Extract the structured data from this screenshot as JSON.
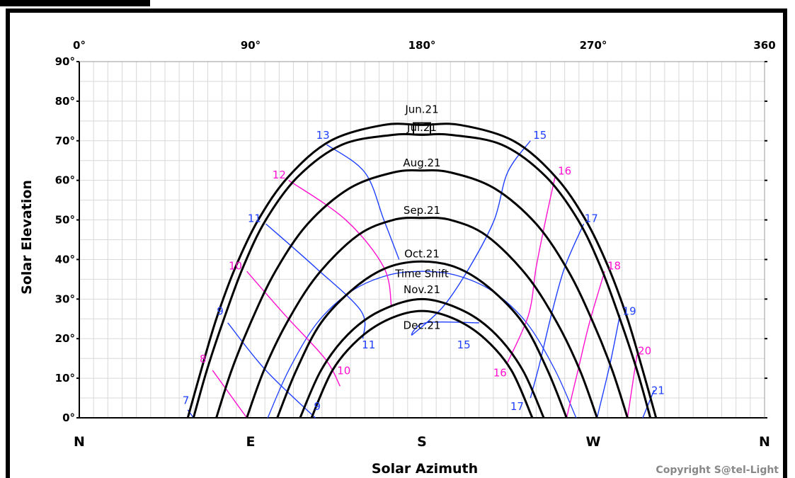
{
  "chart_data": {
    "type": "line",
    "xlabel": "Solar Azimuth",
    "ylabel": "Solar Elevation",
    "xlim": [
      0,
      360
    ],
    "ylim": [
      0,
      90
    ],
    "grid": true,
    "top_ticks": [
      "0°",
      "90°",
      "180°",
      "270°",
      "360"
    ],
    "top_tick_values": [
      0,
      90,
      180,
      270,
      360
    ],
    "y_ticks": [
      "0°",
      "10°",
      "20°",
      "30°",
      "40°",
      "50°",
      "60°",
      "70°",
      "80°",
      "90°"
    ],
    "y_tick_values": [
      0,
      10,
      20,
      30,
      40,
      50,
      60,
      70,
      80,
      90
    ],
    "cardinal_labels": [
      "N",
      "E",
      "S",
      "W",
      "N"
    ],
    "cardinal_values": [
      0,
      90,
      180,
      270,
      360
    ],
    "copyright": "Copyright S@tel-Light",
    "colors": {
      "date_line": "#000000",
      "hour_blue": "#1f3fff",
      "hour_magenta": "#ff10d0",
      "grid": "#d8d8d8"
    },
    "date_series": [
      {
        "name": "Jun.21",
        "points": [
          [
            57,
            0
          ],
          [
            64,
            12
          ],
          [
            72,
            25
          ],
          [
            82,
            38
          ],
          [
            94,
            50
          ],
          [
            110,
            61
          ],
          [
            132,
            70
          ],
          [
            160,
            74
          ],
          [
            180,
            74
          ],
          [
            200,
            74
          ],
          [
            228,
            70
          ],
          [
            250,
            61
          ],
          [
            266,
            50
          ],
          [
            278,
            38
          ],
          [
            288,
            25
          ],
          [
            296,
            12
          ],
          [
            303,
            0
          ]
        ]
      },
      {
        "name": "Jul.21",
        "points": [
          [
            60,
            0
          ],
          [
            67,
            12
          ],
          [
            76,
            25
          ],
          [
            86,
            38
          ],
          [
            98,
            50
          ],
          [
            115,
            61
          ],
          [
            138,
            69
          ],
          [
            165,
            71.5
          ],
          [
            180,
            71.5
          ],
          [
            195,
            71.5
          ],
          [
            222,
            69
          ],
          [
            245,
            61
          ],
          [
            262,
            50
          ],
          [
            274,
            38
          ],
          [
            284,
            25
          ],
          [
            293,
            12
          ],
          [
            300,
            0
          ]
        ]
      },
      {
        "name": "Aug.21",
        "points": [
          [
            72,
            0
          ],
          [
            80,
            12
          ],
          [
            90,
            24
          ],
          [
            103,
            37
          ],
          [
            120,
            49
          ],
          [
            142,
            58
          ],
          [
            165,
            62
          ],
          [
            180,
            62.5
          ],
          [
            195,
            62
          ],
          [
            218,
            58
          ],
          [
            240,
            49
          ],
          [
            257,
            37
          ],
          [
            270,
            24
          ],
          [
            280,
            12
          ],
          [
            288,
            0
          ]
        ]
      },
      {
        "name": "Sep.21",
        "points": [
          [
            88,
            0
          ],
          [
            97,
            12
          ],
          [
            109,
            24
          ],
          [
            125,
            36
          ],
          [
            146,
            46
          ],
          [
            165,
            50
          ],
          [
            180,
            50.5
          ],
          [
            195,
            50
          ],
          [
            214,
            46
          ],
          [
            235,
            36
          ],
          [
            251,
            24
          ],
          [
            263,
            12
          ],
          [
            272,
            0
          ]
        ]
      },
      {
        "name": "Oct.21",
        "points": [
          [
            104,
            0
          ],
          [
            114,
            12
          ],
          [
            127,
            24
          ],
          [
            145,
            33
          ],
          [
            162,
            38
          ],
          [
            180,
            39.5
          ],
          [
            198,
            38
          ],
          [
            215,
            33
          ],
          [
            233,
            24
          ],
          [
            246,
            12
          ],
          [
            256,
            0
          ]
        ]
      },
      {
        "name": "Nov.21",
        "points": [
          [
            116,
            0
          ],
          [
            127,
            12
          ],
          [
            141,
            21
          ],
          [
            158,
            27
          ],
          [
            180,
            30
          ],
          [
            202,
            27
          ],
          [
            219,
            21
          ],
          [
            233,
            12
          ],
          [
            244,
            0
          ]
        ]
      },
      {
        "name": "Dec.21",
        "points": [
          [
            122,
            0
          ],
          [
            133,
            12
          ],
          [
            147,
            20
          ],
          [
            163,
            25
          ],
          [
            180,
            27
          ],
          [
            197,
            25
          ],
          [
            213,
            20
          ],
          [
            227,
            12
          ],
          [
            238,
            0
          ]
        ]
      }
    ],
    "series_labels": [
      {
        "text": "Jun.21",
        "x": 180,
        "y": 77
      },
      {
        "text": "Jul.21",
        "x": 180,
        "y": 72.5
      },
      {
        "text": "Aug.21",
        "x": 180,
        "y": 63.5
      },
      {
        "text": "Sep.21",
        "x": 180,
        "y": 51.5
      },
      {
        "text": "Oct.21",
        "x": 180,
        "y": 40.5
      },
      {
        "text": "Time Shift",
        "x": 180,
        "y": 35.5
      },
      {
        "text": "Nov.21",
        "x": 180,
        "y": 31.5
      },
      {
        "text": "Dec.21",
        "x": 180,
        "y": 22.5
      }
    ],
    "time_shift": {
      "color": "#1f3fff",
      "points": [
        [
          99,
          0
        ],
        [
          110,
          12
        ],
        [
          125,
          24
        ],
        [
          143,
          32
        ],
        [
          162,
          36
        ],
        [
          180,
          37
        ],
        [
          198,
          36
        ],
        [
          217,
          32
        ],
        [
          235,
          24
        ],
        [
          250,
          12
        ],
        [
          261,
          0
        ]
      ]
    },
    "hour_lines": [
      {
        "hour": "7",
        "color": "#1f3fff",
        "points": [
          [
            60,
            0
          ],
          [
            57,
            2
          ]
        ]
      },
      {
        "hour": "8",
        "color": "#ff10d0",
        "points": [
          [
            70,
            12
          ],
          [
            88,
            0
          ]
        ]
      },
      {
        "hour": "9",
        "color": "#1f3fff",
        "points": [
          [
            78,
            24
          ],
          [
            98,
            12
          ],
          [
            124,
            0
          ]
        ]
      },
      {
        "hour": "10",
        "color": "#ff10d0",
        "points": [
          [
            88,
            37
          ],
          [
            108,
            26
          ],
          [
            129,
            15
          ],
          [
            137,
            8
          ]
        ]
      },
      {
        "hour": "11",
        "color": "#1f3fff",
        "points": [
          [
            98,
            49
          ],
          [
            124,
            38
          ],
          [
            148,
            27
          ],
          [
            149,
            20
          ]
        ]
      },
      {
        "hour": "12",
        "color": "#ff10d0",
        "points": [
          [
            110,
            60
          ],
          [
            140,
            50
          ],
          [
            160,
            38
          ],
          [
            164,
            28
          ]
        ]
      },
      {
        "hour": "13",
        "color": "#1f3fff",
        "points": [
          [
            130,
            69
          ],
          [
            150,
            62
          ],
          [
            160,
            50
          ],
          [
            168,
            40
          ]
        ]
      },
      {
        "hour": "15",
        "color": "#1f3fff",
        "points": [
          [
            237,
            70
          ],
          [
            225,
            62
          ],
          [
            218,
            50
          ],
          [
            205,
            38
          ],
          [
            191,
            28
          ],
          [
            175,
            21
          ],
          [
            182,
            24
          ],
          [
            210,
            24
          ]
        ]
      },
      {
        "hour": "16",
        "color": "#ff10d0",
        "points": [
          [
            250,
            61
          ],
          [
            245,
            50
          ],
          [
            240,
            38
          ],
          [
            236,
            26
          ],
          [
            225,
            14
          ]
        ]
      },
      {
        "hour": "17",
        "color": "#1f3fff",
        "points": [
          [
            265,
            49
          ],
          [
            255,
            38
          ],
          [
            248,
            26
          ],
          [
            242,
            14
          ],
          [
            237,
            5
          ]
        ]
      },
      {
        "hour": "18",
        "color": "#ff10d0",
        "points": [
          [
            276,
            37
          ],
          [
            268,
            24
          ],
          [
            262,
            12
          ],
          [
            256,
            0
          ]
        ]
      },
      {
        "hour": "19",
        "color": "#1f3fff",
        "points": [
          [
            284,
            26
          ],
          [
            279,
            14
          ],
          [
            272,
            0
          ]
        ]
      },
      {
        "hour": "20",
        "color": "#ff10d0",
        "points": [
          [
            293,
            16
          ],
          [
            288,
            0
          ]
        ]
      },
      {
        "hour": "21",
        "color": "#1f3fff",
        "points": [
          [
            302,
            7
          ],
          [
            296,
            0
          ]
        ]
      }
    ],
    "hour_labels": [
      {
        "text": "7",
        "color": "#1f3fff",
        "x": 56,
        "y": 3.5
      },
      {
        "text": "8",
        "color": "#ff10d0",
        "x": 65,
        "y": 14
      },
      {
        "text": "9",
        "color": "#1f3fff",
        "x": 74,
        "y": 26
      },
      {
        "text": "10",
        "color": "#ff10d0",
        "x": 82,
        "y": 37.5
      },
      {
        "text": "11",
        "color": "#1f3fff",
        "x": 92,
        "y": 49.5
      },
      {
        "text": "12",
        "color": "#ff10d0",
        "x": 105,
        "y": 60.5
      },
      {
        "text": "13",
        "color": "#1f3fff",
        "x": 128,
        "y": 70.5
      },
      {
        "text": "15",
        "color": "#1f3fff",
        "x": 242,
        "y": 70.5
      },
      {
        "text": "16",
        "color": "#ff10d0",
        "x": 255,
        "y": 61.5
      },
      {
        "text": "17",
        "color": "#1f3fff",
        "x": 269,
        "y": 49.5
      },
      {
        "text": "18",
        "color": "#ff10d0",
        "x": 281,
        "y": 37.5
      },
      {
        "text": "19",
        "color": "#1f3fff",
        "x": 289,
        "y": 26
      },
      {
        "text": "20",
        "color": "#ff10d0",
        "x": 297,
        "y": 16
      },
      {
        "text": "21",
        "color": "#1f3fff",
        "x": 304,
        "y": 6
      },
      {
        "text": "9",
        "color": "#1f3fff",
        "x": 125,
        "y": 2
      },
      {
        "text": "10",
        "color": "#ff10d0",
        "x": 139,
        "y": 11
      },
      {
        "text": "11",
        "color": "#1f3fff",
        "x": 152,
        "y": 17.5
      },
      {
        "text": "15",
        "color": "#1f3fff",
        "x": 202,
        "y": 17.5
      },
      {
        "text": "16",
        "color": "#ff10d0",
        "x": 221,
        "y": 10.5
      },
      {
        "text": "17",
        "color": "#1f3fff",
        "x": 230,
        "y": 2
      }
    ]
  }
}
